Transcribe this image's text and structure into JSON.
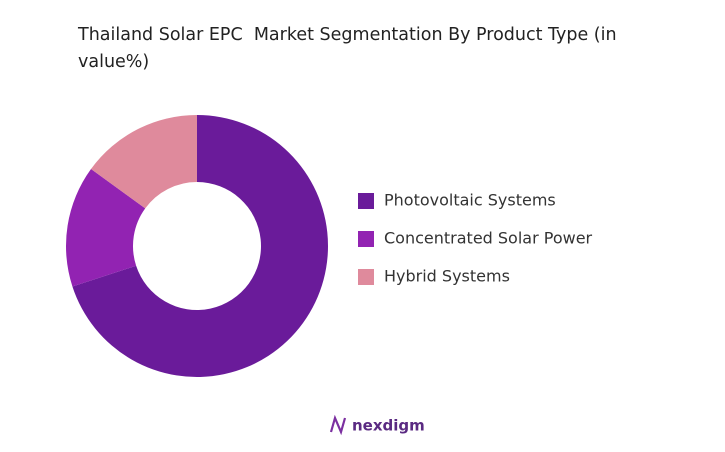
{
  "chart_data": {
    "type": "donut",
    "title": "Thailand Solar EPC  Market Segmentation By Product Type (in value%)",
    "categories": [
      "Photovoltaic Systems",
      "Concentrated Solar Power",
      "Hybrid Systems"
    ],
    "values": [
      70,
      15,
      15
    ],
    "colors": [
      "#6a1b9a",
      "#9223b2",
      "#df8a9c"
    ],
    "legend": "right"
  },
  "brand": "nexdigm"
}
